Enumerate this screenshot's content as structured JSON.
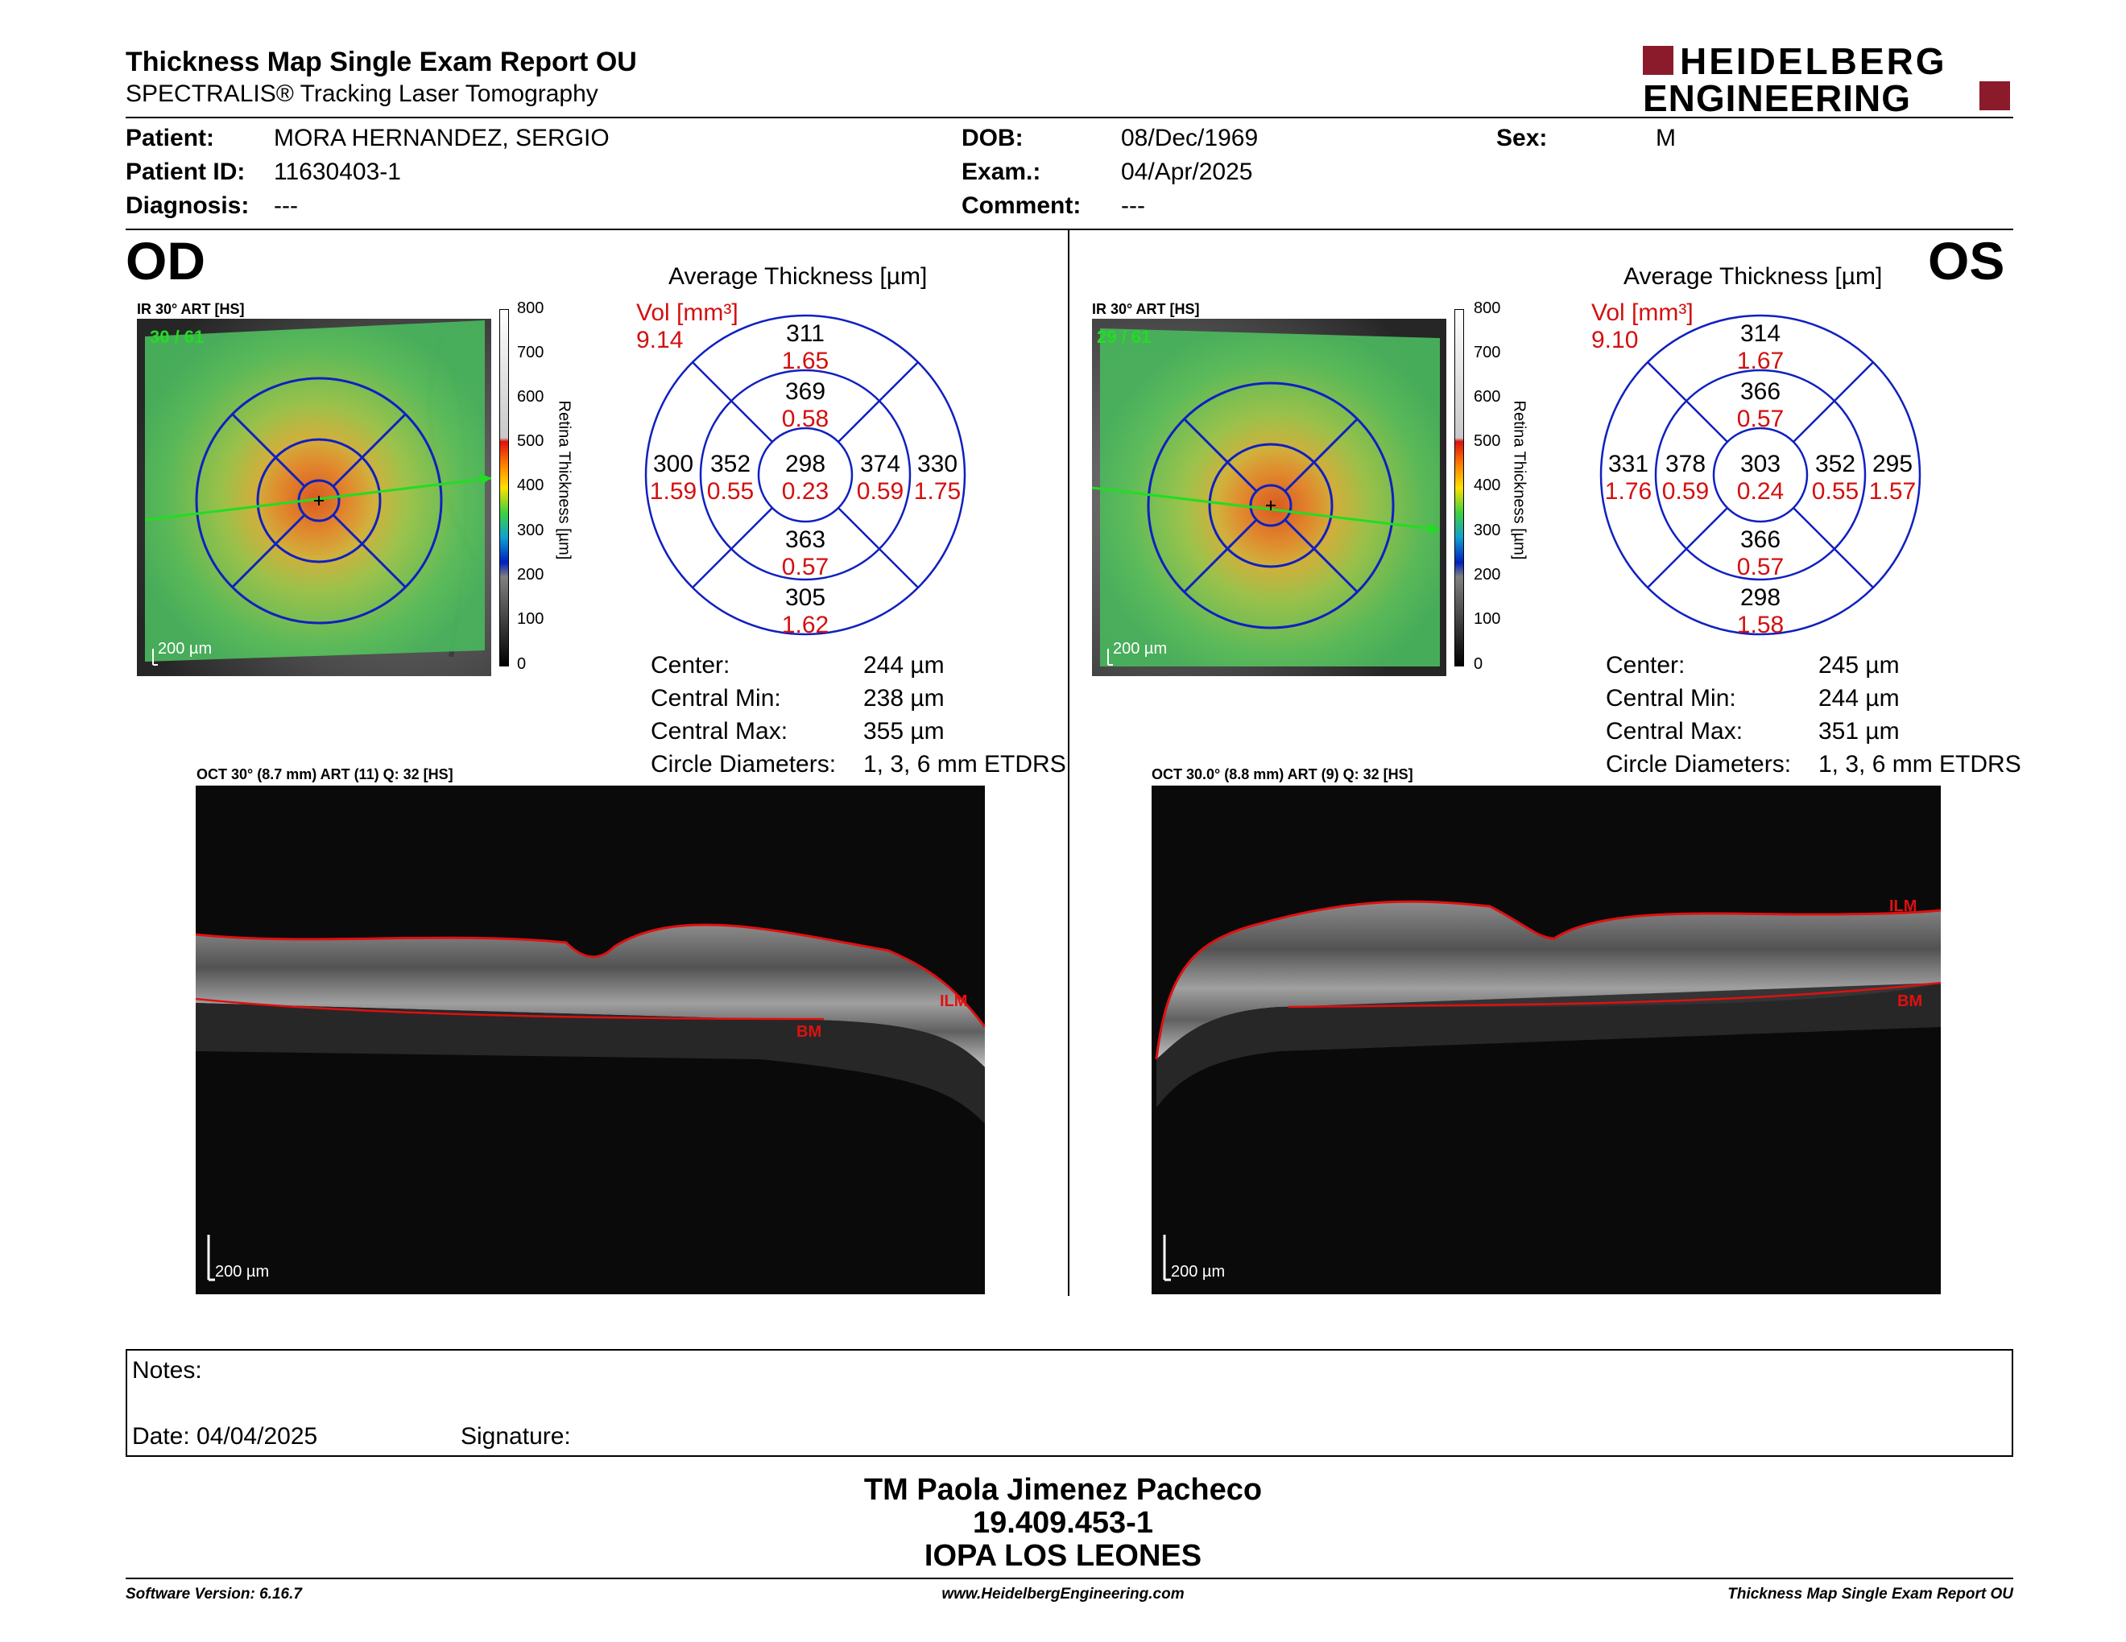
{
  "header": {
    "title": "Thickness Map Single Exam Report OU",
    "subtitle": "SPECTRALIS® Tracking Laser Tomography",
    "logo_line1": "HEIDELBERG",
    "logo_line2": "ENGINEERING"
  },
  "patient": {
    "patient_label": "Patient:",
    "patient_value": "MORA HERNANDEZ, SERGIO",
    "id_label": "Patient ID:",
    "id_value": "11630403-1",
    "diag_label": "Diagnosis:",
    "diag_value": "---",
    "dob_label": "DOB:",
    "dob_value": "08/Dec/1969",
    "exam_label": "Exam.:",
    "exam_value": "04/Apr/2025",
    "comment_label": "Comment:",
    "comment_value": "---",
    "sex_label": "Sex:",
    "sex_value": "M"
  },
  "od": {
    "eye": "OD",
    "ir_label": "IR 30° ART [HS]",
    "ir_counter": "30 / 61",
    "scale": "200 µm",
    "colorbar_title": "Retina Thickness [µm]",
    "colorbar_ticks": [
      "800",
      "700",
      "600",
      "500",
      "400",
      "300",
      "200",
      "100",
      "0"
    ],
    "chart_title": "Average Thickness [µm]",
    "vol_label": "Vol [mm³]",
    "vol_total": "9.14",
    "sectors": {
      "center": {
        "t": "298",
        "v": "0.23"
      },
      "inner_sup": {
        "t": "369",
        "v": "0.58"
      },
      "inner_inf": {
        "t": "363",
        "v": "0.57"
      },
      "inner_left": {
        "t": "352",
        "v": "0.55"
      },
      "inner_right": {
        "t": "374",
        "v": "0.59"
      },
      "outer_sup": {
        "t": "311",
        "v": "1.65"
      },
      "outer_inf": {
        "t": "305",
        "v": "1.62"
      },
      "outer_left": {
        "t": "300",
        "v": "1.59"
      },
      "outer_right": {
        "t": "330",
        "v": "1.75"
      }
    },
    "stats": {
      "center_label": "Center:",
      "center_value": "244 µm",
      "min_label": "Central Min:",
      "min_value": "238 µm",
      "max_label": "Central Max:",
      "max_value": "355 µm",
      "circ_label": "Circle Diameters:",
      "circ_value": "1, 3, 6 mm ETDRS"
    },
    "oct_label": "OCT 30° (8.7 mm) ART (11) Q: 32 [HS]",
    "oct_scale": "200 µm",
    "ilm": "ILM",
    "bm": "BM"
  },
  "os": {
    "eye": "OS",
    "ir_label": "IR 30° ART [HS]",
    "ir_counter": "29 / 61",
    "scale": "200 µm",
    "colorbar_title": "Retina Thickness [µm]",
    "colorbar_ticks": [
      "800",
      "700",
      "600",
      "500",
      "400",
      "300",
      "200",
      "100",
      "0"
    ],
    "chart_title": "Average Thickness [µm]",
    "vol_label": "Vol [mm³]",
    "vol_total": "9.10",
    "sectors": {
      "center": {
        "t": "303",
        "v": "0.24"
      },
      "inner_sup": {
        "t": "366",
        "v": "0.57"
      },
      "inner_inf": {
        "t": "366",
        "v": "0.57"
      },
      "inner_left": {
        "t": "378",
        "v": "0.59"
      },
      "inner_right": {
        "t": "352",
        "v": "0.55"
      },
      "outer_sup": {
        "t": "314",
        "v": "1.67"
      },
      "outer_inf": {
        "t": "298",
        "v": "1.58"
      },
      "outer_left": {
        "t": "331",
        "v": "1.76"
      },
      "outer_right": {
        "t": "295",
        "v": "1.57"
      }
    },
    "stats": {
      "center_label": "Center:",
      "center_value": "245 µm",
      "min_label": "Central Min:",
      "min_value": "244 µm",
      "max_label": "Central Max:",
      "max_value": "351 µm",
      "circ_label": "Circle Diameters:",
      "circ_value": "1, 3, 6 mm ETDRS"
    },
    "oct_label": "OCT 30.0° (8.8 mm) ART (9) Q: 32 [HS]",
    "oct_scale": "200 µm",
    "ilm": "ILM",
    "bm": "BM"
  },
  "notes": {
    "notes_label": "Notes:",
    "date_label": "Date: 04/04/2025",
    "signature_label": "Signature:"
  },
  "signatory": {
    "name": "TM Paola Jimenez Pacheco",
    "rut": "19.409.453-1",
    "institution": "IOPA LOS LEONES"
  },
  "footer": {
    "software": "Software Version: 6.16.7",
    "website": "www.HeidelbergEngineering.com",
    "report": "Thickness Map Single Exam Report OU"
  }
}
